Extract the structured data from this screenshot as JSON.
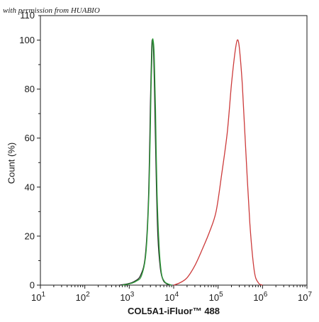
{
  "watermark": "with permission from HUABIO",
  "chart_data": {
    "type": "line",
    "title": "",
    "xlabel": "COL5A1-iFluor™ 488",
    "ylabel": "Count (%)",
    "x_scale": "log10",
    "xlim": [
      10,
      10000000
    ],
    "ylim": [
      0,
      110
    ],
    "x_ticks": [
      {
        "value": 10,
        "base": "10",
        "exp": "1"
      },
      {
        "value": 100,
        "base": "10",
        "exp": "2"
      },
      {
        "value": 1000,
        "base": "10",
        "exp": "3"
      },
      {
        "value": 10000,
        "base": "10",
        "exp": "4"
      },
      {
        "value": 100000,
        "base": "10",
        "exp": "5"
      },
      {
        "value": 1000000,
        "base": "10",
        "exp": "6"
      },
      {
        "value": 10000000,
        "base": "10",
        "exp": "7"
      }
    ],
    "y_ticks": [
      "0",
      "20",
      "40",
      "60",
      "80",
      "100"
    ],
    "y_top_tick": "110",
    "grid": false,
    "series": [
      {
        "color": "#2a2a2a",
        "x": [
          600,
          900,
          1300,
          1800,
          2300,
          2700,
          3000,
          3200,
          3350,
          3500,
          3700,
          4000,
          4400,
          5000,
          5800,
          7000,
          8500
        ],
        "y": [
          0,
          0.5,
          1.5,
          4,
          12,
          35,
          75,
          97,
          100,
          97,
          80,
          48,
          20,
          7,
          2,
          0.5,
          0
        ]
      },
      {
        "color": "#2e9e3a",
        "x": [
          700,
          1000,
          1400,
          1900,
          2400,
          2800,
          3100,
          3300,
          3450,
          3650,
          3900,
          4200,
          4700,
          5300,
          6200,
          7500,
          9000
        ],
        "y": [
          0,
          0.5,
          1.5,
          4,
          14,
          40,
          80,
          98,
          100,
          94,
          72,
          40,
          16,
          5,
          1.5,
          0.5,
          0
        ]
      },
      {
        "color": "#cc3a3a",
        "x": [
          10000,
          14000,
          20000,
          30000,
          45000,
          65000,
          90000,
          120000,
          160000,
          200000,
          240000,
          270000,
          300000,
          350000,
          420000,
          520000,
          650000,
          800000,
          1000000
        ],
        "y": [
          0,
          1,
          3,
          8,
          15,
          22,
          30,
          45,
          62,
          82,
          95,
          100,
          97,
          82,
          55,
          25,
          6,
          1,
          0
        ]
      }
    ]
  }
}
